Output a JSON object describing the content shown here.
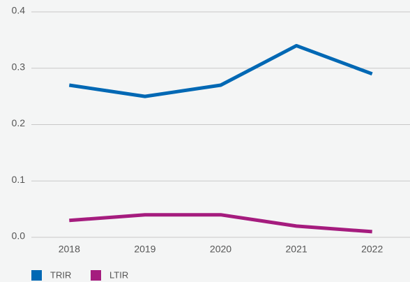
{
  "chart_data": {
    "type": "line",
    "categories": [
      "2018",
      "2019",
      "2020",
      "2021",
      "2022"
    ],
    "series": [
      {
        "name": "TRIR",
        "color": "#0068b4",
        "values": [
          0.27,
          0.25,
          0.27,
          0.34,
          0.29
        ]
      },
      {
        "name": "LTIR",
        "color": "#a51c7e",
        "values": [
          0.03,
          0.04,
          0.04,
          0.02,
          0.01
        ]
      }
    ],
    "ylim": [
      0,
      0.4
    ],
    "yticks": [
      {
        "value": 0,
        "label": "0.0"
      },
      0.1,
      0.2,
      0.3,
      0.4
    ],
    "grid": true,
    "legend": "bottom-left"
  }
}
